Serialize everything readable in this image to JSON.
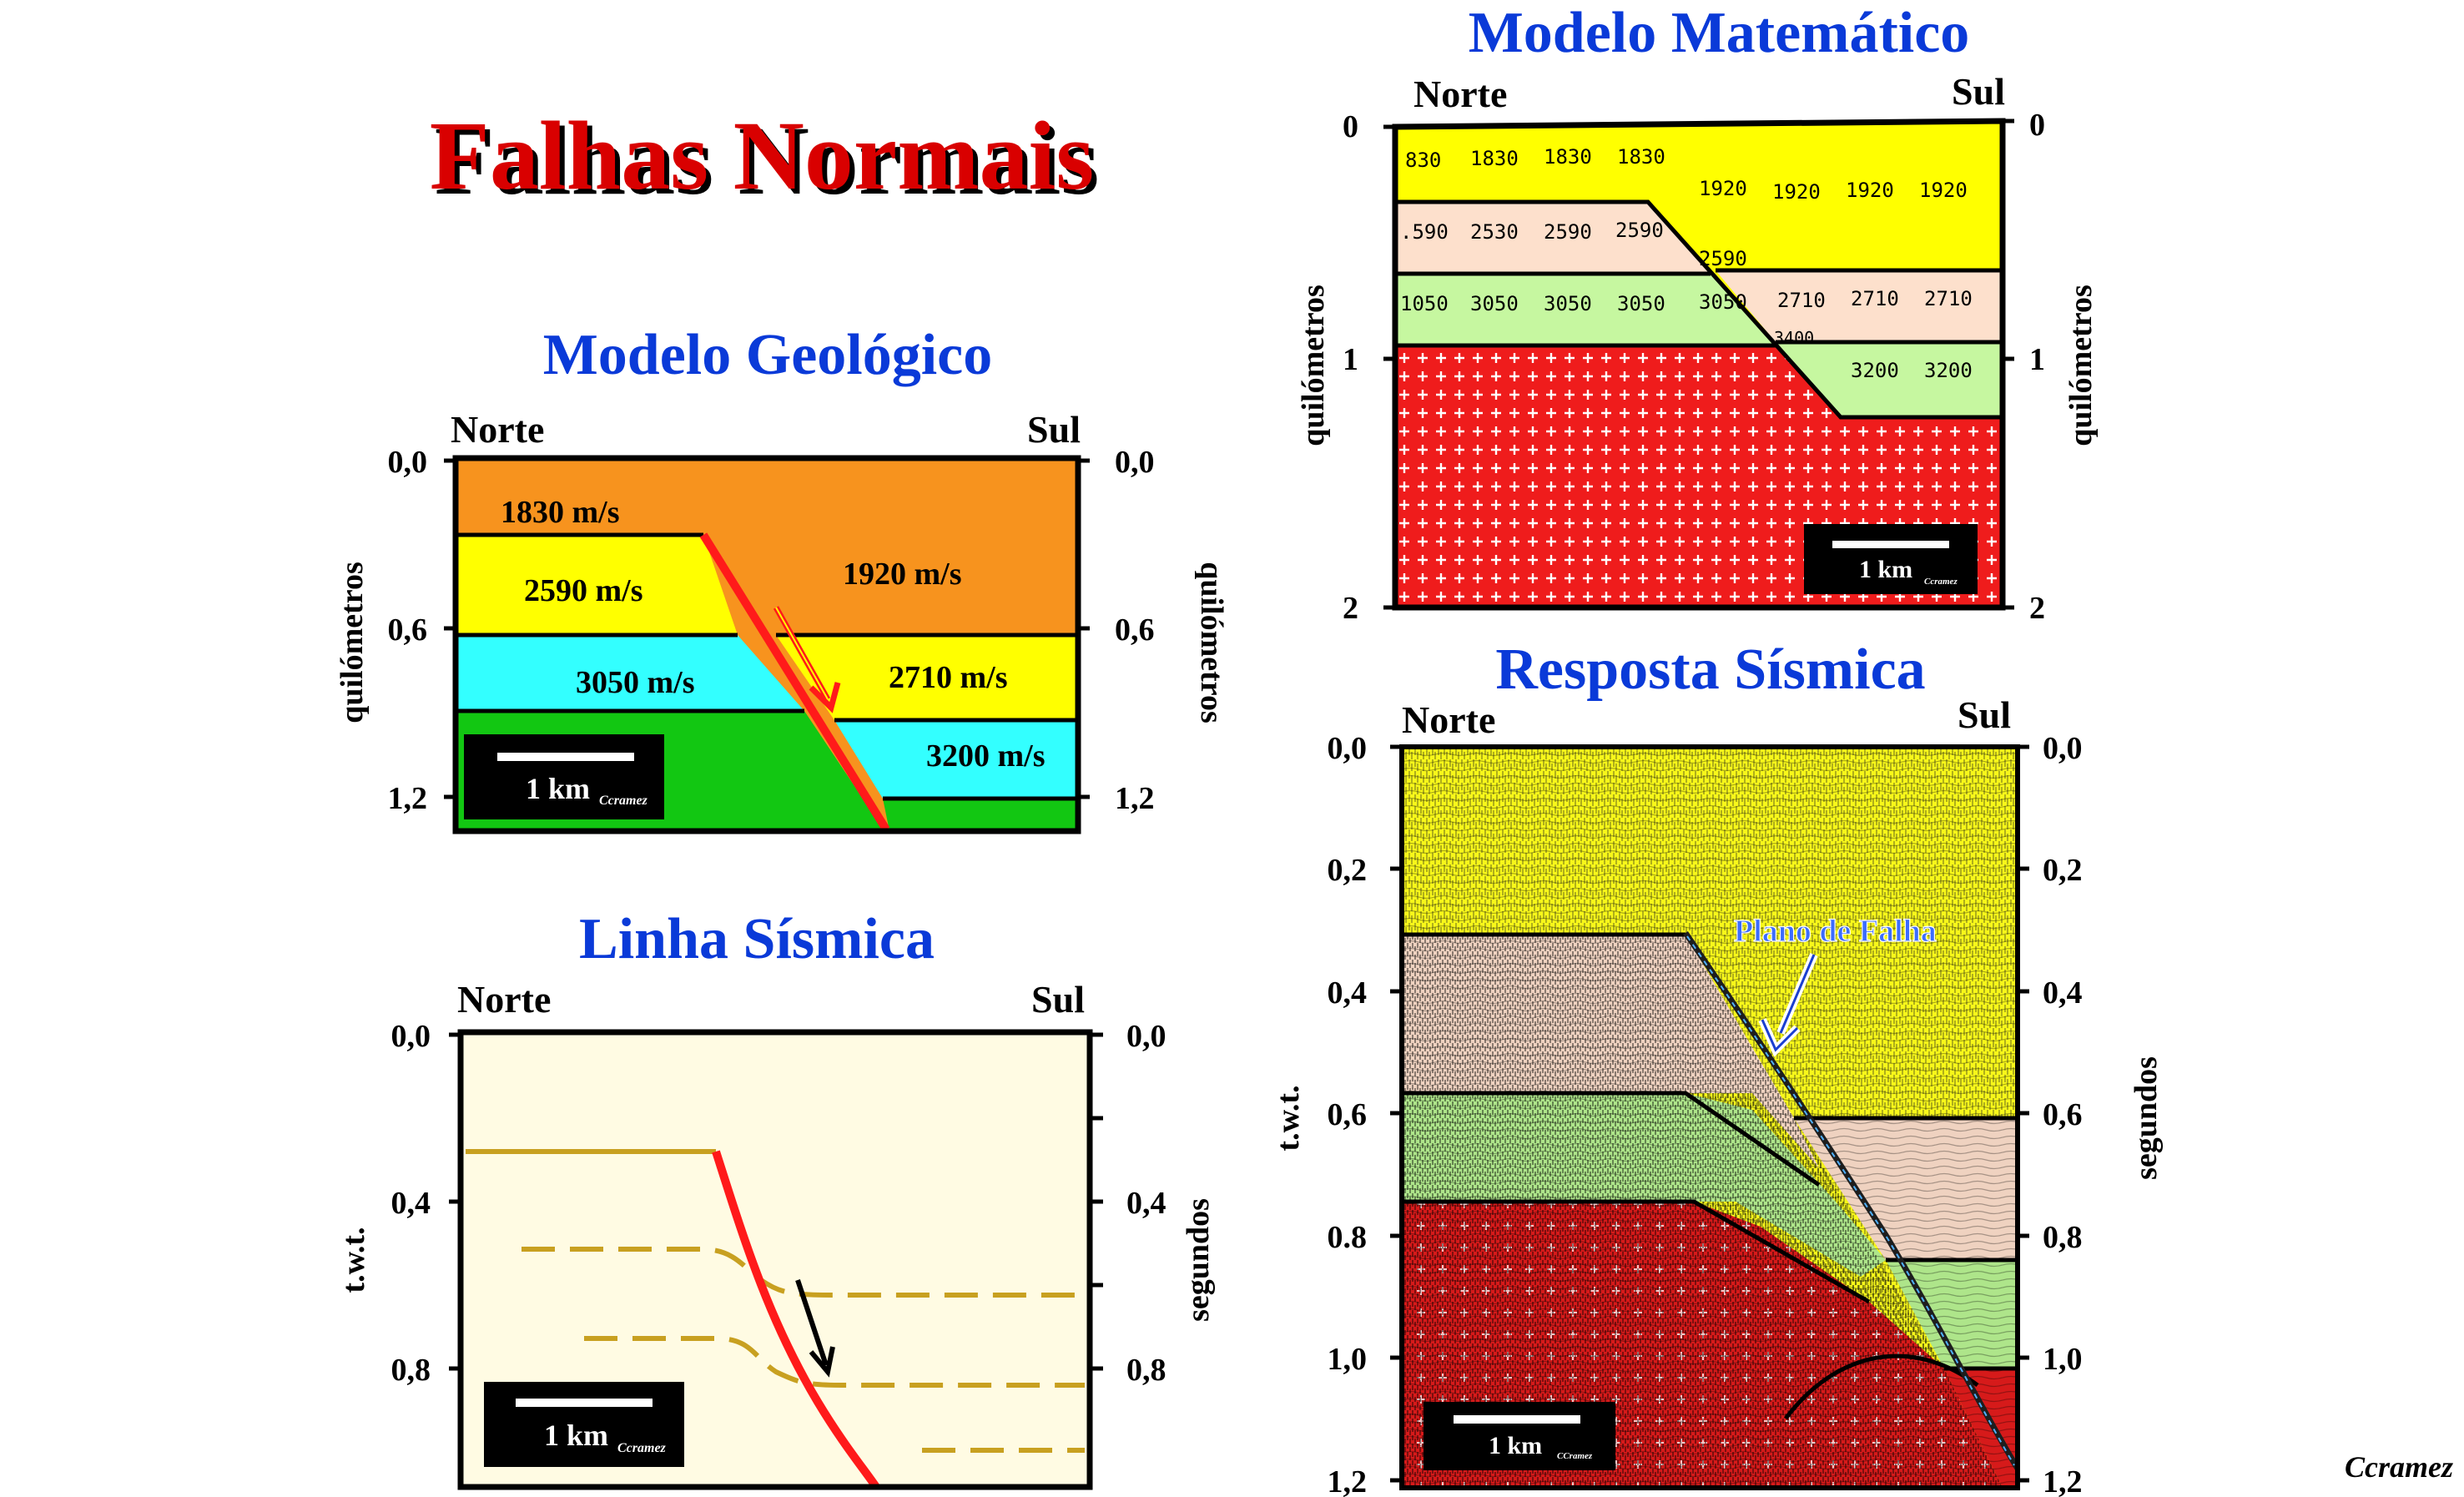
{
  "main_title": "Falhas Normais",
  "credit": "Ccramez",
  "geo": {
    "title": "Modelo Geológico",
    "north": "Norte",
    "south": "Sul",
    "axis_label": "quilómetros",
    "ticks": [
      "0,0",
      "0,6",
      "1,2"
    ],
    "velocities": [
      "1830 m/s",
      "2590 m/s",
      "3050 m/s",
      "1920 m/s",
      "2710 m/s",
      "3200 m/s"
    ],
    "scale": "1 km",
    "scale_credit": "Ccramez",
    "colors": {
      "orange": "#f7931e",
      "yellow": "#ffff00",
      "cyan": "#33ffff",
      "green": "#12c712",
      "fault": "#ff1a1a"
    }
  },
  "seis_line": {
    "title": "Linha Sísmica",
    "north": "Norte",
    "south": "Sul",
    "left_label": "t.w.t.",
    "right_label": "segundos",
    "ticks": [
      "0,0",
      "0,4",
      "0,8"
    ],
    "scale": "1 km",
    "scale_credit": "Ccramez",
    "colors": {
      "background": "#fffbe3",
      "reflector": "#c8a020",
      "fault": "#ff1a1a"
    }
  },
  "math": {
    "title": "Modelo Matemático",
    "north": "Norte",
    "south": "Sul",
    "axis_label": "quilómetros",
    "ticks": [
      "0",
      "1",
      "2"
    ],
    "row1_left": [
      "830",
      "1830",
      "1830",
      "1830"
    ],
    "row1_right": [
      "1920",
      "1920",
      "1920",
      "1920"
    ],
    "row2_left": [
      ".590",
      "2530",
      "2590",
      "2590"
    ],
    "row2_fault": "2590",
    "row3_left": [
      "1050",
      "3050",
      "3050",
      "3050",
      "3050"
    ],
    "row3_right": [
      "2710",
      "2710",
      "2710"
    ],
    "row3_fault": "3400",
    "row4_right": [
      "3200",
      "3200"
    ],
    "scale": "1 km",
    "scale_credit": "Ccramez",
    "colors": {
      "yellow": "#ffff00",
      "peach": "#fde0cc",
      "lightgreen": "#c6f7a0",
      "red": "#ef1c1c"
    }
  },
  "response": {
    "title": "Resposta Sísmica",
    "north": "Norte",
    "south": "Sul",
    "left_label": "t.w.t.",
    "right_label": "segundos",
    "ticks_left": [
      "0,0",
      "0,2",
      "0,4",
      "0,6",
      "0.8",
      "1,0",
      "1,2"
    ],
    "ticks_right": [
      "0,0",
      "0,2",
      "0,4",
      "0,6",
      "0,8",
      "1,0",
      "1,2"
    ],
    "annotation": "Plano de Falha",
    "scale": "1 km",
    "scale_credit": "CCramez"
  }
}
